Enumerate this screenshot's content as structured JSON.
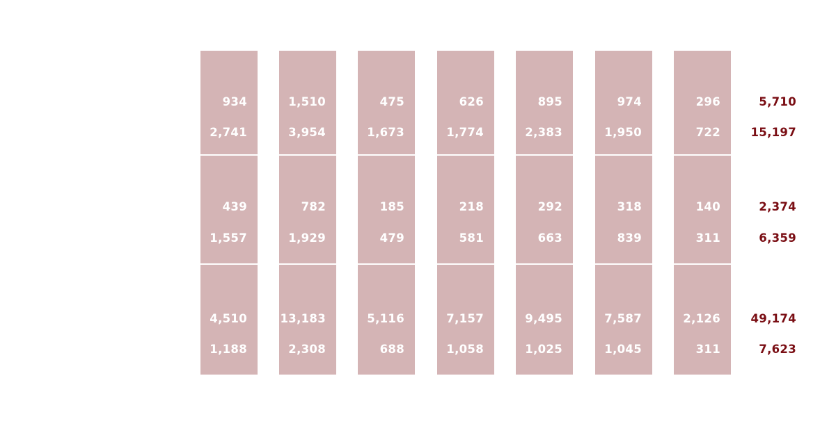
{
  "colors": {
    "column_fill": "#d4b4b5",
    "cell_text": "#ffffff",
    "total_text": "#7a0e14",
    "divider": "#ffffff",
    "background": "#ffffff"
  },
  "columns": [
    {
      "values": [
        "934",
        "2,741",
        "439",
        "1,557",
        "4,510",
        "1,188"
      ]
    },
    {
      "values": [
        "1,510",
        "3,954",
        "782",
        "1,929",
        "13,183",
        "2,308"
      ]
    },
    {
      "values": [
        "475",
        "1,673",
        "185",
        "479",
        "5,116",
        "688"
      ]
    },
    {
      "values": [
        "626",
        "1,774",
        "218",
        "581",
        "7,157",
        "1,058"
      ]
    },
    {
      "values": [
        "895",
        "2,383",
        "292",
        "663",
        "9,495",
        "1,025"
      ]
    },
    {
      "values": [
        "974",
        "1,950",
        "318",
        "839",
        "7,587",
        "1,045"
      ]
    },
    {
      "values": [
        "296",
        "722",
        "140",
        "311",
        "2,126",
        "311"
      ]
    }
  ],
  "totals": [
    "5,710",
    "15,197",
    "2,374",
    "6,359",
    "49,174",
    "7,623"
  ]
}
